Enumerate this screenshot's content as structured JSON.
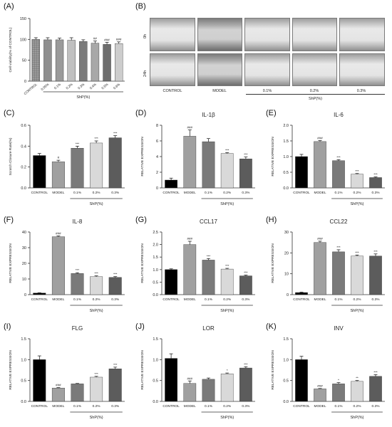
{
  "figure": {
    "background": "#ffffff",
    "bar_colors": [
      "#000000",
      "#a0a0a0",
      "#7a7a7a",
      "#d9d9d9",
      "#5c5c5c"
    ],
    "panel_b": {
      "letter": "(B)",
      "row_labels": [
        "0h",
        "24h"
      ],
      "col_labels": [
        "CONTROL",
        "MODEL",
        "0.1%",
        "0.2%",
        "0.3%"
      ],
      "group_label": "ShP(%)"
    }
  },
  "chart_data": [
    {
      "id": "A",
      "letter": "(A)",
      "type": "bar",
      "title": "",
      "xlabel": "",
      "ylabel": "Cell viability(% of CONTROL)",
      "ylim": [
        0,
        150
      ],
      "yticks": [
        0,
        50,
        100,
        150
      ],
      "categories": [
        "CONTROL",
        "0.05%",
        "0.1%",
        "0.2%",
        "0.3%",
        "0.4%",
        "0.5%",
        "0.6%"
      ],
      "values": [
        100,
        99,
        99,
        98,
        95,
        91,
        88,
        90
      ],
      "errors": [
        4,
        5,
        4,
        6,
        4,
        5,
        5,
        4
      ],
      "sig": [
        "",
        "",
        "",
        "",
        "",
        "##",
        "###",
        "###"
      ],
      "group_label": "ShP(%)",
      "group_from": 1,
      "group_to": 7,
      "colors": [
        "#8a8a8a",
        "#8f8f8f",
        "#9a9a9a",
        "#c0c0c0",
        "#7b7b7b",
        "#a8a8a8",
        "#6e6e6e",
        "#cdcdcd"
      ],
      "control_pattern": true
    },
    {
      "id": "C",
      "letter": "(C)",
      "type": "bar",
      "title": "",
      "xlabel": "",
      "ylabel": "Scratch Closure Rate(%)",
      "ylim": [
        0,
        0.6
      ],
      "yticks": [
        0.0,
        0.2,
        0.4,
        0.6
      ],
      "categories": [
        "CONTROL",
        "MODEL",
        "0.1%",
        "0.2%",
        "0.3%"
      ],
      "values": [
        0.31,
        0.25,
        0.38,
        0.43,
        0.48
      ],
      "errors": [
        0.02,
        0.015,
        0.02,
        0.02,
        0.02
      ],
      "sig": [
        "",
        "#",
        "***",
        "***",
        "***"
      ],
      "group_label": "ShP(%)",
      "group_from": 2,
      "group_to": 4,
      "colors": [
        "#000000",
        "#a0a0a0",
        "#7a7a7a",
        "#d9d9d9",
        "#5c5c5c"
      ]
    },
    {
      "id": "D",
      "letter": "(D)",
      "type": "bar",
      "title": "IL-1β",
      "xlabel": "",
      "ylabel": "RELATIVE EXPRESSION",
      "ylim": [
        0,
        8
      ],
      "yticks": [
        0,
        2,
        4,
        6,
        8
      ],
      "categories": [
        "CONTROL",
        "MODEL",
        "0.1%",
        "0.2%",
        "0.3%"
      ],
      "values": [
        1.0,
        6.6,
        5.9,
        4.4,
        3.7
      ],
      "errors": [
        0.25,
        0.8,
        0.4,
        0.1,
        0.25
      ],
      "sig": [
        "",
        "###",
        "",
        "***",
        "***"
      ],
      "group_label": "ShP(%)",
      "group_from": 2,
      "group_to": 4,
      "colors": [
        "#000000",
        "#a0a0a0",
        "#7a7a7a",
        "#d9d9d9",
        "#5c5c5c"
      ]
    },
    {
      "id": "E",
      "letter": "(E)",
      "type": "bar",
      "title": "IL-6",
      "xlabel": "",
      "ylabel": "RELATIVE EXPRESSION",
      "ylim": [
        0,
        2.0
      ],
      "yticks": [
        0.0,
        0.5,
        1.0,
        1.5,
        2.0
      ],
      "categories": [
        "CONTROL",
        "MODEL",
        "0.1%",
        "0.2%",
        "0.3%"
      ],
      "values": [
        1.0,
        1.48,
        0.87,
        0.44,
        0.33
      ],
      "errors": [
        0.07,
        0.03,
        0.03,
        0.02,
        0.02
      ],
      "sig": [
        "",
        "###",
        "***",
        "***",
        "***"
      ],
      "group_label": "ShP(%)",
      "group_from": 2,
      "group_to": 4,
      "colors": [
        "#000000",
        "#a0a0a0",
        "#7a7a7a",
        "#d9d9d9",
        "#5c5c5c"
      ]
    },
    {
      "id": "F",
      "letter": "(F)",
      "type": "bar",
      "title": "IL-8",
      "xlabel": "",
      "ylabel": "RELATIVE EXPRESSION",
      "ylim": [
        0,
        40
      ],
      "yticks": [
        0,
        10,
        20,
        30,
        40
      ],
      "categories": [
        "CONTROL",
        "MODEL",
        "0.1%",
        "0.2%",
        "0.3%"
      ],
      "values": [
        1.0,
        37,
        13.5,
        11.5,
        11
      ],
      "errors": [
        0.2,
        0.5,
        0.5,
        0.5,
        0.5
      ],
      "sig": [
        "",
        "###",
        "***",
        "***",
        "***"
      ],
      "group_label": "ShP(%)",
      "group_from": 2,
      "group_to": 4,
      "colors": [
        "#000000",
        "#a0a0a0",
        "#7a7a7a",
        "#d9d9d9",
        "#5c5c5c"
      ]
    },
    {
      "id": "G",
      "letter": "(G)",
      "type": "bar",
      "title": "CCL17",
      "xlabel": "",
      "ylabel": "RELATIVE EXPRESSION",
      "ylim": [
        0,
        2.5
      ],
      "yticks": [
        0.0,
        0.5,
        1.0,
        1.5,
        2.0,
        2.5
      ],
      "categories": [
        "CONTROL",
        "MODEL",
        "0.1%",
        "0.2%",
        "0.3%"
      ],
      "values": [
        1.0,
        2.0,
        1.38,
        1.02,
        0.75
      ],
      "errors": [
        0.03,
        0.13,
        0.06,
        0.03,
        0.03
      ],
      "sig": [
        "",
        "###",
        "***",
        "***",
        "***"
      ],
      "group_label": "ShP(%)",
      "group_from": 2,
      "group_to": 4,
      "colors": [
        "#000000",
        "#a0a0a0",
        "#7a7a7a",
        "#d9d9d9",
        "#5c5c5c"
      ]
    },
    {
      "id": "H",
      "letter": "(H)",
      "type": "bar",
      "title": "CCL22",
      "xlabel": "",
      "ylabel": "RELATIVE EXPRESSION",
      "ylim": [
        0,
        30
      ],
      "yticks": [
        0,
        10,
        20,
        30
      ],
      "categories": [
        "CONTROL",
        "MODEL",
        "0.1%",
        "0.2%",
        "0.3%"
      ],
      "values": [
        1.0,
        25,
        20.5,
        18.5,
        18.5
      ],
      "errors": [
        0.2,
        0.6,
        1.0,
        0.5,
        1.0
      ],
      "sig": [
        "",
        "###",
        "***",
        "***",
        "***"
      ],
      "group_label": "ShP(%)",
      "group_from": 2,
      "group_to": 4,
      "colors": [
        "#000000",
        "#a0a0a0",
        "#7a7a7a",
        "#d9d9d9",
        "#5c5c5c"
      ]
    },
    {
      "id": "I",
      "letter": "(I)",
      "type": "bar",
      "title": "FLG",
      "xlabel": "",
      "ylabel": "RELATIVE EXPRESSION",
      "ylim": [
        0,
        1.5
      ],
      "yticks": [
        0.0,
        0.5,
        1.0,
        1.5
      ],
      "categories": [
        "CONTROL",
        "MODEL",
        "0.1%",
        "0.2%",
        "0.3%"
      ],
      "values": [
        1.0,
        0.32,
        0.42,
        0.58,
        0.78
      ],
      "errors": [
        0.09,
        0.01,
        0.01,
        0.02,
        0.04
      ],
      "sig": [
        "",
        "###",
        "",
        "***",
        "***"
      ],
      "group_label": "ShP(%)",
      "group_from": 2,
      "group_to": 4,
      "colors": [
        "#000000",
        "#a0a0a0",
        "#7a7a7a",
        "#d9d9d9",
        "#5c5c5c"
      ]
    },
    {
      "id": "J",
      "letter": "(J)",
      "type": "bar",
      "title": "LOR",
      "xlabel": "",
      "ylabel": "RELATIVE EXPRESSION",
      "ylim": [
        0,
        1.5
      ],
      "yticks": [
        0.0,
        0.5,
        1.0,
        1.5
      ],
      "categories": [
        "CONTROL",
        "MODEL",
        "0.1%",
        "0.2%",
        "0.3%"
      ],
      "values": [
        1.03,
        0.43,
        0.53,
        0.66,
        0.8
      ],
      "errors": [
        0.11,
        0.06,
        0.03,
        0.02,
        0.03
      ],
      "sig": [
        "",
        "###",
        "",
        "*",
        "***"
      ],
      "group_label": "ShP(%)",
      "group_from": 2,
      "group_to": 4,
      "colors": [
        "#000000",
        "#a0a0a0",
        "#7a7a7a",
        "#d9d9d9",
        "#5c5c5c"
      ]
    },
    {
      "id": "K",
      "letter": "(K)",
      "type": "bar",
      "title": "INV",
      "xlabel": "",
      "ylabel": "RELATIVE EXPRESSION",
      "ylim": [
        0,
        1.5
      ],
      "yticks": [
        0.0,
        0.5,
        1.0,
        1.5
      ],
      "categories": [
        "CONTROL",
        "MODEL",
        "0.1%",
        "0.2%",
        "0.3%"
      ],
      "values": [
        1.0,
        0.3,
        0.42,
        0.48,
        0.6
      ],
      "errors": [
        0.08,
        0.01,
        0.03,
        0.02,
        0.04
      ],
      "sig": [
        "",
        "###",
        "*",
        "**",
        "***"
      ],
      "group_label": "ShP(%)",
      "group_from": 2,
      "group_to": 4,
      "colors": [
        "#000000",
        "#a0a0a0",
        "#7a7a7a",
        "#d9d9d9",
        "#5c5c5c"
      ]
    }
  ]
}
